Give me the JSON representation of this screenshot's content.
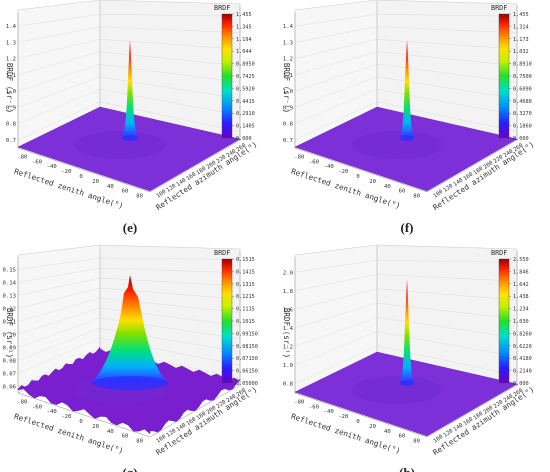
{
  "chart_data": [
    {
      "type": "surface3d",
      "caption": "(e)",
      "colorbar_title": "BRDF",
      "colorbar_ticks": [
        "1.455",
        "1.345",
        "1.194",
        "1.044",
        "0.8950",
        "0.7425",
        "0.5920",
        "0.4415",
        "0.2910",
        "0.1405",
        "0.000"
      ],
      "z_ticks": [
        "0.7",
        "0.8",
        "0.9",
        "1.0",
        "1.1",
        "1.2",
        "1.3",
        "1.4"
      ],
      "zlabel": "BRDF (sr⁻¹)",
      "x_ticks": [
        "-80",
        "-60",
        "-40",
        "-20",
        "0",
        "20",
        "40",
        "60",
        "80"
      ],
      "xlabel": "Reflected zenith angle(°)",
      "y_ticks": [
        "100",
        "120",
        "140",
        "160",
        "180",
        "200",
        "220",
        "240",
        "260"
      ],
      "ylabel": "Reflected azimuth angle(°)",
      "peak": {
        "x": 0,
        "y": 180,
        "z": 1.455
      }
    },
    {
      "type": "surface3d",
      "caption": "(f)",
      "colorbar_title": "BRDF",
      "colorbar_ticks": [
        "1.455",
        "1.314",
        "1.173",
        "1.032",
        "0.8910",
        "0.7500",
        "0.6090",
        "0.4680",
        "0.3270",
        "0.1860",
        "0.000"
      ],
      "z_ticks": [
        "0.7",
        "0.8",
        "0.9",
        "1.0",
        "1.1",
        "1.2",
        "1.3",
        "1.4"
      ],
      "zlabel": "BRDF (sr⁻¹)",
      "x_ticks": [
        "-80",
        "-60",
        "-40",
        "-20",
        "0",
        "20",
        "40",
        "60",
        "80"
      ],
      "xlabel": "Reflected zenith angle(°)",
      "y_ticks": [
        "100",
        "120",
        "140",
        "160",
        "180",
        "200",
        "220",
        "240",
        "260"
      ],
      "ylabel": "Reflected azimuth angle(°)",
      "peak": {
        "x": 0,
        "y": 180,
        "z": 1.455
      }
    },
    {
      "type": "surface3d",
      "caption": "(g)",
      "colorbar_title": "BRDF",
      "colorbar_ticks": [
        "0.1515",
        "0.1415",
        "0.1315",
        "0.1215",
        "0.1115",
        "0.1015",
        "0.09150",
        "0.08150",
        "0.07150",
        "0.06150",
        "0.05000"
      ],
      "z_ticks": [
        "0.06",
        "0.07",
        "0.08",
        "0.09",
        "0.10",
        "0.11",
        "0.12",
        "0.13",
        "0.14",
        "0.15"
      ],
      "zlabel": "BRDF (sr⁻¹)",
      "x_ticks": [
        "-80",
        "-60",
        "-40",
        "-20",
        "0",
        "20",
        "40",
        "60",
        "80"
      ],
      "xlabel": "Reflected zenith angle(°)",
      "y_ticks": [
        "100",
        "120",
        "140",
        "160",
        "180",
        "200",
        "220",
        "240",
        "260"
      ],
      "ylabel": "Reflected azimuth angle(°)",
      "peak": {
        "x": 0,
        "y": 180,
        "z": 0.1515
      }
    },
    {
      "type": "surface3d",
      "caption": "(h)",
      "colorbar_title": "BRDF",
      "colorbar_ticks": [
        "2.550",
        "1.846",
        "1.642",
        "1.438",
        "1.234",
        "1.030",
        "0.8260",
        "0.6220",
        "0.4180",
        "0.2140",
        "0.000"
      ],
      "z_ticks": [
        "0.8",
        "1.0",
        "1.2",
        "1.4",
        "1.6",
        "1.8",
        "2.0"
      ],
      "zlabel": "BRDF (sr⁻¹)",
      "x_ticks": [
        "-80",
        "-60",
        "-40",
        "-20",
        "0",
        "20",
        "40",
        "60",
        "80"
      ],
      "xlabel": "Reflected zenith angle(°)",
      "y_ticks": [
        "100",
        "120",
        "140",
        "160",
        "180",
        "200",
        "220",
        "240",
        "260"
      ],
      "ylabel": "Reflected azimuth angle(°)",
      "peak": {
        "x": 0,
        "y": 180,
        "z": 2.55
      }
    }
  ]
}
